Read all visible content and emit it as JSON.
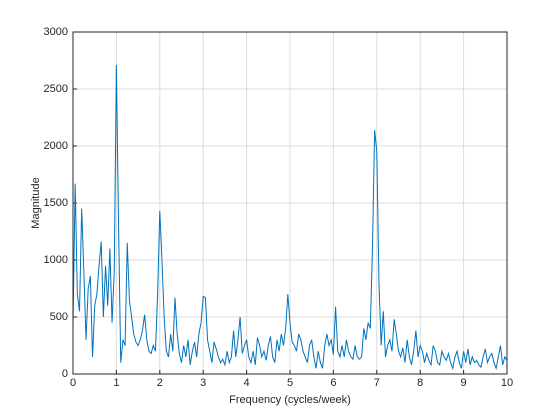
{
  "chart_data": {
    "type": "line",
    "x_label": "Frequency (cycles/week)",
    "y_label": "Magnitude",
    "xlim": [
      0,
      10
    ],
    "ylim": [
      0,
      3000
    ],
    "xticks": [
      0,
      1,
      2,
      3,
      4,
      5,
      6,
      7,
      8,
      9,
      10
    ],
    "yticks": [
      0,
      500,
      1000,
      1500,
      2000,
      2500,
      3000
    ],
    "grid": true,
    "x": [
      0,
      0.05,
      0.1,
      0.15,
      0.2,
      0.25,
      0.3,
      0.35,
      0.4,
      0.45,
      0.5,
      0.55,
      0.6,
      0.65,
      0.7,
      0.75,
      0.8,
      0.85,
      0.9,
      0.95,
      1,
      1.05,
      1.1,
      1.15,
      1.2,
      1.25,
      1.3,
      1.35,
      1.4,
      1.45,
      1.5,
      1.55,
      1.6,
      1.65,
      1.7,
      1.75,
      1.8,
      1.85,
      1.9,
      1.95,
      2,
      2.05,
      2.1,
      2.15,
      2.2,
      2.25,
      2.3,
      2.35,
      2.4,
      2.45,
      2.5,
      2.55,
      2.6,
      2.65,
      2.7,
      2.75,
      2.8,
      2.85,
      2.9,
      2.95,
      3,
      3.05,
      3.1,
      3.15,
      3.2,
      3.25,
      3.3,
      3.35,
      3.4,
      3.45,
      3.5,
      3.55,
      3.6,
      3.65,
      3.7,
      3.75,
      3.8,
      3.85,
      3.9,
      3.95,
      4,
      4.05,
      4.1,
      4.15,
      4.2,
      4.25,
      4.3,
      4.35,
      4.4,
      4.45,
      4.5,
      4.55,
      4.6,
      4.65,
      4.7,
      4.75,
      4.8,
      4.85,
      4.9,
      4.95,
      5,
      5.05,
      5.1,
      5.15,
      5.2,
      5.25,
      5.3,
      5.35,
      5.4,
      5.45,
      5.5,
      5.55,
      5.6,
      5.65,
      5.7,
      5.75,
      5.8,
      5.85,
      5.9,
      5.95,
      6,
      6.05,
      6.1,
      6.15,
      6.2,
      6.25,
      6.3,
      6.35,
      6.4,
      6.45,
      6.5,
      6.55,
      6.6,
      6.65,
      6.7,
      6.75,
      6.8,
      6.85,
      6.9,
      6.95,
      7,
      7.05,
      7.1,
      7.15,
      7.2,
      7.25,
      7.3,
      7.35,
      7.4,
      7.45,
      7.5,
      7.55,
      7.6,
      7.65,
      7.7,
      7.75,
      7.8,
      7.85,
      7.9,
      7.95,
      8,
      8.05,
      8.1,
      8.15,
      8.2,
      8.25,
      8.3,
      8.35,
      8.4,
      8.45,
      8.5,
      8.55,
      8.6,
      8.65,
      8.7,
      8.75,
      8.8,
      8.85,
      8.9,
      8.95,
      9,
      9.05,
      9.1,
      9.15,
      9.2,
      9.25,
      9.3,
      9.35,
      9.4,
      9.45,
      9.5,
      9.55,
      9.6,
      9.65,
      9.7,
      9.75,
      9.8,
      9.85,
      9.9,
      9.95,
      10
    ],
    "series": [
      {
        "color": "#0072bd",
        "values": [
          430,
          1670,
          700,
          550,
          1450,
          900,
          300,
          750,
          860,
          150,
          600,
          700,
          950,
          1160,
          500,
          950,
          600,
          1100,
          450,
          900,
          2710,
          1300,
          100,
          300,
          250,
          1150,
          650,
          500,
          350,
          280,
          250,
          300,
          380,
          520,
          300,
          200,
          180,
          250,
          200,
          700,
          1430,
          1000,
          500,
          200,
          150,
          350,
          200,
          670,
          350,
          180,
          100,
          250,
          150,
          300,
          80,
          200,
          280,
          150,
          350,
          450,
          680,
          670,
          300,
          200,
          100,
          280,
          220,
          150,
          100,
          130,
          80,
          200,
          100,
          150,
          380,
          150,
          300,
          500,
          180,
          250,
          300,
          150,
          100,
          200,
          80,
          320,
          250,
          150,
          200,
          120,
          250,
          330,
          150,
          100,
          300,
          200,
          350,
          250,
          400,
          700,
          450,
          280,
          250,
          200,
          350,
          300,
          200,
          150,
          100,
          250,
          300,
          150,
          50,
          200,
          100,
          50,
          250,
          350,
          250,
          300,
          170,
          590,
          200,
          150,
          250,
          150,
          300,
          200,
          150,
          130,
          250,
          150,
          130,
          150,
          400,
          300,
          450,
          400,
          1100,
          2140,
          1950,
          800,
          250,
          550,
          150,
          250,
          300,
          200,
          480,
          350,
          200,
          150,
          230,
          100,
          300,
          150,
          80,
          200,
          380,
          150,
          250,
          200,
          100,
          180,
          120,
          80,
          250,
          200,
          100,
          80,
          200,
          150,
          120,
          180,
          100,
          50,
          150,
          200,
          100,
          50,
          200,
          100,
          220,
          80,
          150,
          100,
          120,
          80,
          60,
          150,
          220,
          100,
          150,
          180,
          100,
          50,
          150,
          250,
          80,
          150,
          120
        ]
      }
    ]
  }
}
